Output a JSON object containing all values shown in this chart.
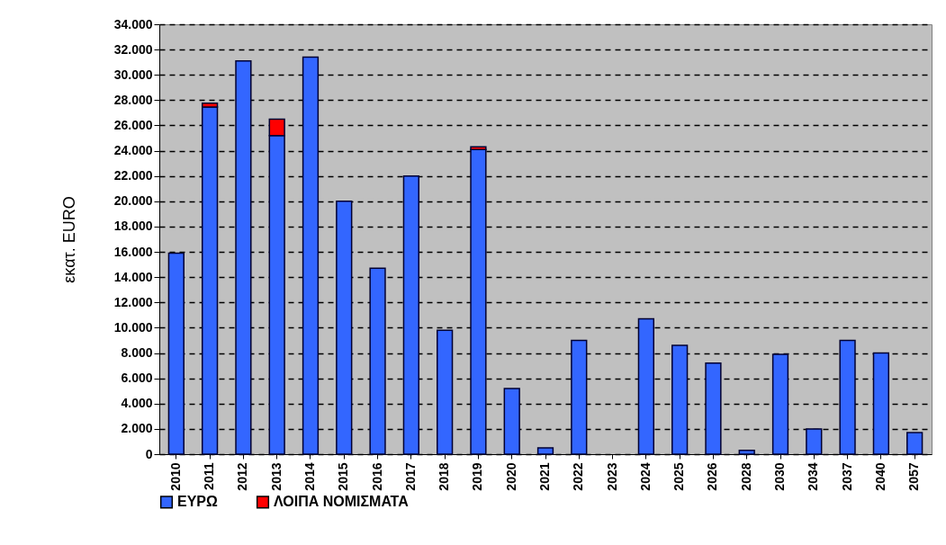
{
  "chart_data": {
    "type": "bar",
    "stacked": true,
    "ylabel": "εκατ. EURO",
    "categories": [
      "2010",
      "2011",
      "2012",
      "2013",
      "2014",
      "2015",
      "2016",
      "2017",
      "2018",
      "2019",
      "2020",
      "2021",
      "2022",
      "2023",
      "2024",
      "2025",
      "2026",
      "2028",
      "2030",
      "2034",
      "2037",
      "2040",
      "2057"
    ],
    "series": [
      {
        "name": "ΕΥΡΩ",
        "color": "#3366ff",
        "values": [
          15900,
          27450,
          31100,
          25200,
          31400,
          20000,
          14700,
          22000,
          9800,
          24100,
          5200,
          500,
          9000,
          null,
          10700,
          8600,
          7200,
          300,
          7900,
          2000,
          9000,
          8000,
          1700
        ]
      },
      {
        "name": "ΛΟΙΠΑ ΝΟΜΙΣΜΑΤΑ",
        "color": "#ff0000",
        "values": [
          null,
          300,
          null,
          1300,
          null,
          null,
          null,
          null,
          null,
          200,
          null,
          null,
          null,
          null,
          null,
          null,
          null,
          null,
          null,
          null,
          null,
          null,
          null
        ]
      }
    ],
    "ylim": [
      0,
      34000
    ],
    "yticks": [
      {
        "value": 0,
        "label": "0"
      },
      {
        "value": 2000,
        "label": "2.000"
      },
      {
        "value": 4000,
        "label": "4.000"
      },
      {
        "value": 6000,
        "label": "6.000"
      },
      {
        "value": 8000,
        "label": "8.000"
      },
      {
        "value": 10000,
        "label": "10.000"
      },
      {
        "value": 12000,
        "label": "12.000"
      },
      {
        "value": 14000,
        "label": "14.000"
      },
      {
        "value": 16000,
        "label": "16.000"
      },
      {
        "value": 18000,
        "label": "18.000"
      },
      {
        "value": 20000,
        "label": "20.000"
      },
      {
        "value": 22000,
        "label": "22.000"
      },
      {
        "value": 24000,
        "label": "24.000"
      },
      {
        "value": 26000,
        "label": "26.000"
      },
      {
        "value": 28000,
        "label": "28.000"
      },
      {
        "value": 30000,
        "label": "30.000"
      },
      {
        "value": 32000,
        "label": "32.000"
      },
      {
        "value": 34000,
        "label": "34.000"
      }
    ],
    "grid": "y",
    "legend": "bottom"
  }
}
